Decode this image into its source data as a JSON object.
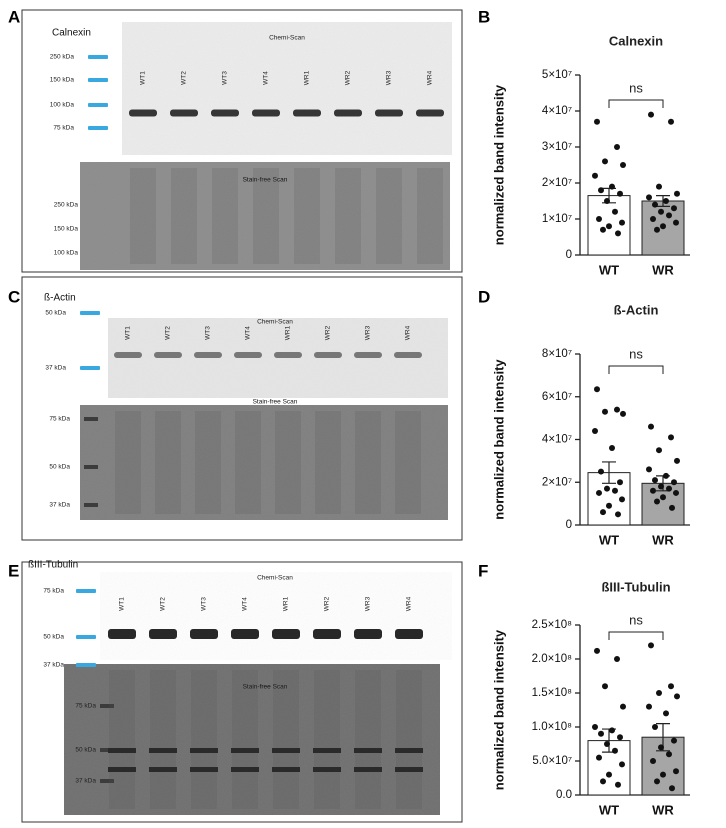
{
  "blots": [
    {
      "panel": "A",
      "title": "Calnexin",
      "chemi_label": "Chemi-Scan",
      "stain_label": "Stain-free Scan",
      "lanes": [
        "WT1",
        "WT2",
        "WT3",
        "WT4",
        "WR1",
        "WR2",
        "WR3",
        "WR4"
      ],
      "chemi_markers": [
        "250 kDa",
        "150 kDa",
        "100 kDa",
        "75 kDa"
      ],
      "stain_markers": [
        "250 kDa",
        "150 kDa",
        "100 kDa"
      ]
    },
    {
      "panel": "C",
      "title": "ß-Actin",
      "chemi_label": "Chemi-Scan",
      "stain_label": "Stain-free Scan",
      "lanes": [
        "WT1",
        "WT2",
        "WT3",
        "WT4",
        "WR1",
        "WR2",
        "WR3",
        "WR4"
      ],
      "chemi_markers": [
        "50 kDa",
        "37 kDa"
      ],
      "stain_markers": [
        "75 kDa",
        "50 kDa",
        "37 kDa"
      ]
    },
    {
      "panel": "E",
      "title": "ßIII-Tubulin",
      "chemi_label": "Chemi-Scan",
      "stain_label": "Stain-free Scan",
      "lanes": [
        "WT1",
        "WT2",
        "WT3",
        "WT4",
        "WR1",
        "WR2",
        "WR3",
        "WR4"
      ],
      "chemi_markers": [
        "75 kDa",
        "50 kDa",
        "37 kDa"
      ],
      "stain_markers": [
        "75 kDa",
        "50 kDa",
        "37 kDa"
      ]
    }
  ],
  "chart_data": [
    {
      "type": "bar",
      "panel": "B",
      "title": "Calnexin",
      "y_label": "normalized band intensity",
      "annotation": "ns",
      "categories": [
        "WT",
        "WR"
      ],
      "colors": [
        "#ffffff",
        "#a6a6a6"
      ],
      "values": [
        16500000,
        15000000
      ],
      "errors": [
        2000000,
        1500000
      ],
      "points": [
        [
          37000000,
          30000000,
          26000000,
          25000000,
          22000000,
          19000000,
          18000000,
          17000000,
          15000000,
          12000000,
          10000000,
          9000000,
          8000000,
          7000000,
          6000000
        ],
        [
          39000000,
          37000000,
          19000000,
          17000000,
          16000000,
          15000000,
          14000000,
          13000000,
          12000000,
          11000000,
          10000000,
          9000000,
          8000000,
          7000000
        ]
      ],
      "ylim": [
        0,
        50000000
      ],
      "yticks": [
        0,
        {
          "value": 10000000,
          "label": "1×10⁷"
        },
        {
          "value": 20000000,
          "label": "2×10⁷"
        },
        {
          "value": 30000000,
          "label": "3×10⁷"
        },
        {
          "value": 40000000,
          "label": "4×10⁷"
        },
        {
          "value": 50000000,
          "label": "5×10⁷"
        }
      ]
    },
    {
      "type": "bar",
      "panel": "D",
      "title": "ß-Actin",
      "y_label": "normalized band intensity",
      "annotation": "ns",
      "categories": [
        "WT",
        "WR"
      ],
      "colors": [
        "#ffffff",
        "#a6a6a6"
      ],
      "values": [
        24500000,
        19500000
      ],
      "errors": [
        5000000,
        3500000
      ],
      "points": [
        [
          63500000,
          54000000,
          53000000,
          52000000,
          44000000,
          36000000,
          25000000,
          20000000,
          17000000,
          16000000,
          15000000,
          12000000,
          9000000,
          6000000,
          5000000
        ],
        [
          46000000,
          41000000,
          35000000,
          30000000,
          26000000,
          23000000,
          21000000,
          20000000,
          18000000,
          17000000,
          16000000,
          15000000,
          13000000,
          11000000,
          8000000
        ]
      ],
      "ylim": [
        0,
        80000000
      ],
      "yticks": [
        0,
        {
          "value": 20000000,
          "label": "2×10⁷"
        },
        {
          "value": 40000000,
          "label": "4×10⁷"
        },
        {
          "value": 60000000,
          "label": "6×10⁷"
        },
        {
          "value": 80000000,
          "label": "8×10⁷"
        }
      ]
    },
    {
      "type": "bar",
      "panel": "F",
      "title": "ßIII-Tubulin",
      "y_label": "normalized band intensity",
      "annotation": "ns",
      "categories": [
        "WT",
        "WR"
      ],
      "colors": [
        "#ffffff",
        "#a6a6a6"
      ],
      "values": [
        80000000,
        85000000
      ],
      "errors": [
        17000000,
        20000000
      ],
      "points": [
        [
          212000000,
          200000000,
          160000000,
          130000000,
          100000000,
          95000000,
          90000000,
          85000000,
          75000000,
          65000000,
          55000000,
          45000000,
          30000000,
          20000000,
          15000000
        ],
        [
          220000000,
          160000000,
          150000000,
          145000000,
          130000000,
          120000000,
          100000000,
          80000000,
          70000000,
          60000000,
          50000000,
          35000000,
          30000000,
          20000000,
          10000000
        ]
      ],
      "ylim": [
        0,
        250000000
      ],
      "yticks": [
        {
          "value": 0,
          "label": "0.0"
        },
        {
          "value": 50000000,
          "label": "5.0×10⁷"
        },
        {
          "value": 100000000,
          "label": "1.0×10⁸"
        },
        {
          "value": 150000000,
          "label": "1.5×10⁸"
        },
        {
          "value": 200000000,
          "label": "2.0×10⁸"
        },
        {
          "value": 250000000,
          "label": "2.5×10⁸"
        }
      ]
    }
  ]
}
